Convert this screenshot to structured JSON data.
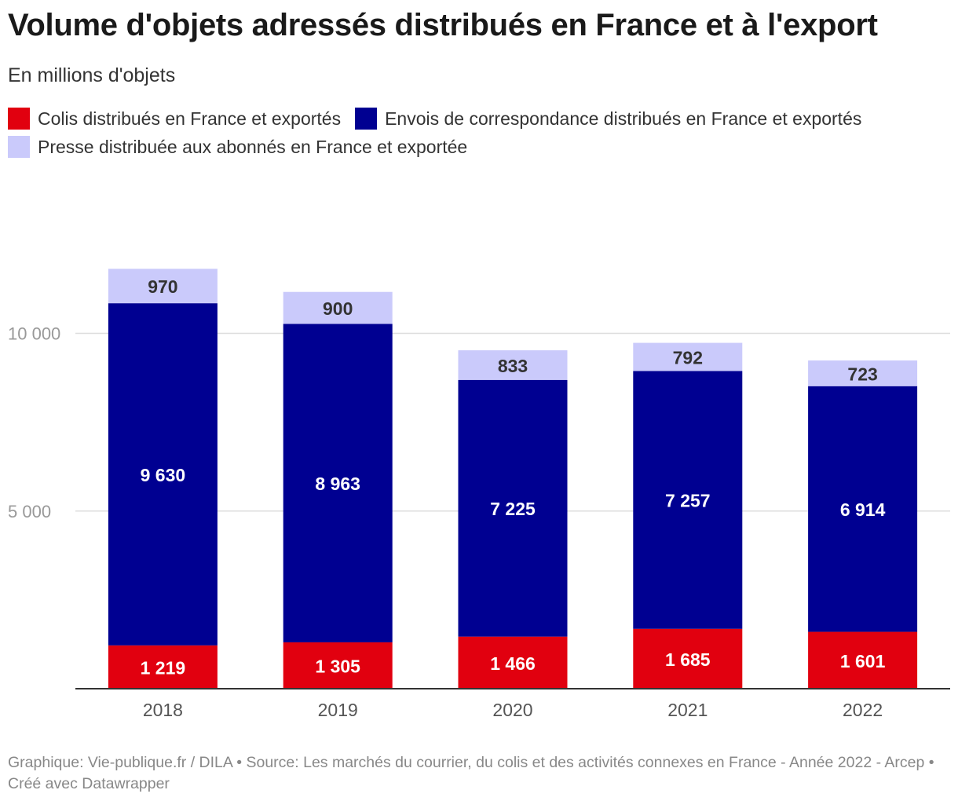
{
  "title": "Volume d'objets adressés distribués en France et à l'export",
  "subtitle": "En millions d'objets",
  "footer": "Graphique: Vie-publique.fr / DILA • Source: Les marchés du courrier, du colis et des activités connexes en France - Année 2022 - Arcep • Créé avec Datawrapper",
  "chart_data": {
    "type": "bar",
    "stacked": true,
    "categories": [
      "2018",
      "2019",
      "2020",
      "2021",
      "2022"
    ],
    "series": [
      {
        "name": "Colis distribués en France et exportés",
        "color": "#e1000f",
        "label_color": "#ffffff",
        "values": [
          1219,
          1305,
          1466,
          1685,
          1601
        ],
        "labels": [
          "1 219",
          "1 305",
          "1 466",
          "1 685",
          "1 601"
        ]
      },
      {
        "name": "Envois de correspondance distribués en France et exportés",
        "color": "#000091",
        "label_color": "#ffffff",
        "values": [
          9630,
          8963,
          7225,
          7257,
          6914
        ],
        "labels": [
          "9 630",
          "8 963",
          "7 225",
          "7 257",
          "6 914"
        ]
      },
      {
        "name": "Presse distribuée aux abonnés en France et exportée",
        "color": "#cacafb",
        "label_color": "#333333",
        "values": [
          970,
          900,
          833,
          792,
          723
        ],
        "labels": [
          "970",
          "900",
          "833",
          "792",
          "723"
        ]
      }
    ],
    "yticks": [
      5000,
      10000
    ],
    "ytick_labels": [
      "5 000",
      "10 000"
    ],
    "ylim": [
      0,
      14300
    ],
    "grid": true,
    "legend_position": "top-left"
  }
}
